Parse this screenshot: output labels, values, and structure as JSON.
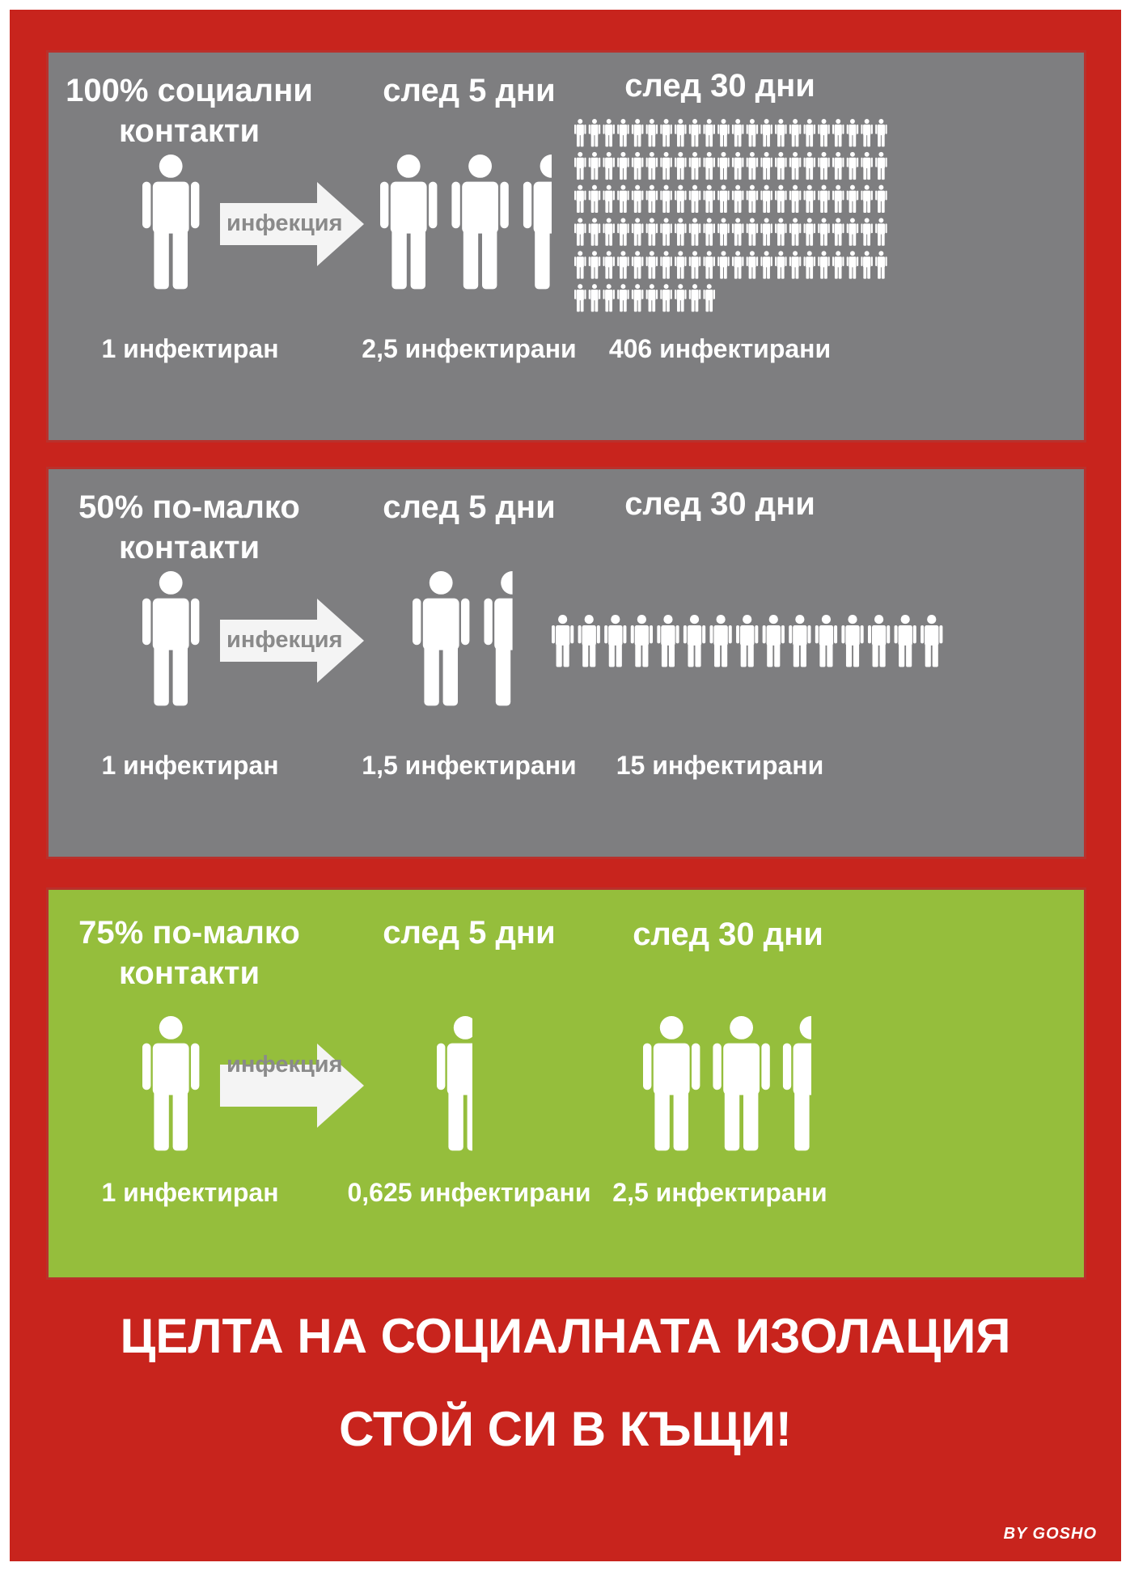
{
  "panels": [
    {
      "heading": "100% социални\nконтакти",
      "after5_label": "след 5 дни",
      "after30_label": "след 30 дни",
      "arrow_label": "инфекция",
      "start_count": "1 инфектиран",
      "after5_count": "2,5 инфектирани",
      "after30_count": "406 инфектирани",
      "after5_people": 2.5,
      "after30_people": 406,
      "background": "#7e7e80"
    },
    {
      "heading": "50% по-малко\nконтакти",
      "after5_label": "след 5 дни",
      "after30_label": "след 30 дни",
      "arrow_label": "инфекция",
      "start_count": "1 инфектиран",
      "after5_count": "1,5 инфектирани",
      "after30_count": "15 инфектирани",
      "after5_people": 1.5,
      "after30_people": 15,
      "background": "#7e7e80"
    },
    {
      "heading": "75% по-малко\nконтакти",
      "after5_label": "след 5 дни",
      "after30_label": "след 30 дни",
      "arrow_label": "инфекция",
      "start_count": "1 инфектиран",
      "after5_count": "0,625 инфектирани",
      "after30_count": "2,5 инфектирани",
      "after5_people": 0.625,
      "after30_people": 2.5,
      "background": "#95be3c"
    }
  ],
  "footer": {
    "headline": "ЦЕЛТА НА СОЦИАЛНАТА ИЗОЛАЦИЯ",
    "slogan": "СТОЙ СИ В КЪЩИ!",
    "credit": "BY GOSHO"
  },
  "colors": {
    "frame": "#c8241d",
    "panel_gray": "#7e7e80",
    "panel_green": "#95be3c",
    "figure": "#ffffff"
  },
  "icons": [
    "person-icon",
    "arrow-right-icon"
  ]
}
